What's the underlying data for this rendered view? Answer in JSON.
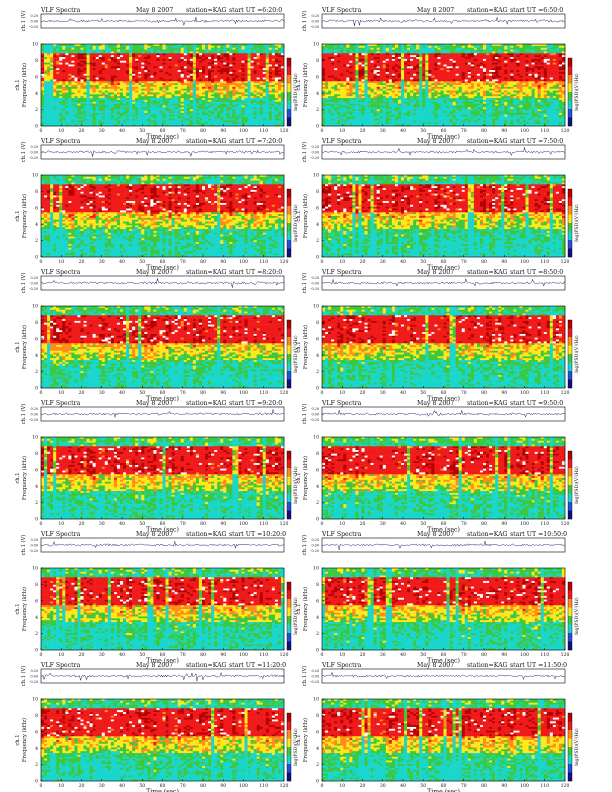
{
  "figure": {
    "panel_title": "VLF Spectra",
    "date": "May 8 2007",
    "station": "station=KAG",
    "start_prefix": "start  UT =",
    "time_label": "Time (sec)",
    "ch_label": "ch.1 (V)",
    "freq_label": "Frequency (kHz)",
    "ch_axis_text": "ch.1",
    "colorbar_label": "log(PSD)(V²/Hz)",
    "ch_ticks": [
      "0.20",
      "0.00",
      "-0.20"
    ],
    "colors": {
      "dark_red": "#b40000",
      "red": "#f01a1a",
      "orange": "#ff8c1a",
      "yellow": "#ffe81a",
      "green": "#3cc83c",
      "cyan": "#19d6cc",
      "blue": "#2050e0",
      "dark_blue": "#101080",
      "white": "#ffffff"
    }
  },
  "chart_data": [
    {
      "type": "heatmap",
      "start_ut": "6:20:0",
      "title": "VLF Spectra  May 8 2007  station=KAG  start UT =6:20:0",
      "xlabel": "Time (sec)",
      "ylabel": "Frequency (kHz)",
      "x_ticks": [
        0,
        10,
        20,
        30,
        40,
        50,
        60,
        70,
        80,
        90,
        100,
        110,
        120
      ],
      "y_ticks": [
        0,
        2,
        4,
        6,
        8,
        10
      ],
      "xlim": [
        0,
        120
      ],
      "ylim": [
        0,
        10
      ],
      "colorbar": "log(PSD)(V²/Hz)"
    },
    {
      "type": "heatmap",
      "start_ut": "6:50:0",
      "title": "VLF Spectra  May 8 2007  station=KAG  start UT =6:50:0",
      "xlabel": "Time (sec)",
      "ylabel": "Frequency (kHz)",
      "x_ticks": [
        0,
        10,
        20,
        30,
        40,
        50,
        60,
        70,
        80,
        90,
        100,
        110,
        120
      ],
      "y_ticks": [
        0,
        2,
        4,
        6,
        8,
        10
      ],
      "xlim": [
        0,
        120
      ],
      "ylim": [
        0,
        10
      ],
      "colorbar": "log(PSD)(V²/Hz)"
    },
    {
      "type": "heatmap",
      "start_ut": "7:20:0",
      "title": "VLF Spectra  May 8 2007  station=KAG  start UT =7:20:0",
      "xlabel": "Time (sec)",
      "ylabel": "Frequency (kHz)",
      "x_ticks": [
        0,
        10,
        20,
        30,
        40,
        50,
        60,
        70,
        80,
        90,
        100,
        110,
        120
      ],
      "y_ticks": [
        0,
        2,
        4,
        6,
        8,
        10
      ],
      "xlim": [
        0,
        120
      ],
      "ylim": [
        0,
        10
      ],
      "colorbar": "log(PSD)(V²/Hz)"
    },
    {
      "type": "heatmap",
      "start_ut": "7:50:0",
      "title": "VLF Spectra  May 8 2007  station=KAG  start UT =7:50:0",
      "xlabel": "Time (sec)",
      "ylabel": "Frequency (kHz)",
      "x_ticks": [
        0,
        10,
        20,
        30,
        40,
        50,
        60,
        70,
        80,
        90,
        100,
        110,
        120
      ],
      "y_ticks": [
        0,
        2,
        4,
        6,
        8,
        10
      ],
      "xlim": [
        0,
        120
      ],
      "ylim": [
        0,
        10
      ],
      "colorbar": "log(PSD)(V²/Hz)"
    },
    {
      "type": "heatmap",
      "start_ut": "8:20:0",
      "title": "VLF Spectra  May 8 2007  station=KAG  start UT =8:20:0",
      "xlabel": "Time (sec)",
      "ylabel": "Frequency (kHz)",
      "x_ticks": [
        0,
        10,
        20,
        30,
        40,
        50,
        60,
        70,
        80,
        90,
        100,
        110,
        120
      ],
      "y_ticks": [
        0,
        2,
        4,
        6,
        8,
        10
      ],
      "xlim": [
        0,
        120
      ],
      "ylim": [
        0,
        10
      ],
      "colorbar": "log(PSD)(V²/Hz)"
    },
    {
      "type": "heatmap",
      "start_ut": "8:50:0",
      "title": "VLF Spectra  May 8 2007  station=KAG  start UT =8:50:0",
      "xlabel": "Time (sec)",
      "ylabel": "Frequency (kHz)",
      "x_ticks": [
        0,
        10,
        20,
        30,
        40,
        50,
        60,
        70,
        80,
        90,
        100,
        110,
        120
      ],
      "y_ticks": [
        0,
        2,
        4,
        6,
        8,
        10
      ],
      "xlim": [
        0,
        120
      ],
      "ylim": [
        0,
        10
      ],
      "colorbar": "log(PSD)(V²/Hz)"
    },
    {
      "type": "heatmap",
      "start_ut": "9:20:0",
      "title": "VLF Spectra  May 8 2007  station=KAG  start UT =9:20:0",
      "xlabel": "Time (sec)",
      "ylabel": "Frequency (kHz)",
      "x_ticks": [
        0,
        10,
        20,
        30,
        40,
        50,
        60,
        70,
        80,
        90,
        100,
        110,
        120
      ],
      "y_ticks": [
        0,
        2,
        4,
        6,
        8,
        10
      ],
      "xlim": [
        0,
        120
      ],
      "ylim": [
        0,
        10
      ],
      "colorbar": "log(PSD)(V²/Hz)"
    },
    {
      "type": "heatmap",
      "start_ut": "9:50:0",
      "title": "VLF Spectra  May 8 2007  station=KAG  start UT =9:50:0",
      "xlabel": "Time (sec)",
      "ylabel": "Frequency (kHz)",
      "x_ticks": [
        0,
        10,
        20,
        30,
        40,
        50,
        60,
        70,
        80,
        90,
        100,
        110,
        120
      ],
      "y_ticks": [
        0,
        2,
        4,
        6,
        8,
        10
      ],
      "xlim": [
        0,
        120
      ],
      "ylim": [
        0,
        10
      ],
      "colorbar": "log(PSD)(V²/Hz)"
    },
    {
      "type": "heatmap",
      "start_ut": "10:20:0",
      "title": "VLF Spectra  May 8 2007  station=KAG  start UT =10:20:0",
      "xlabel": "Time (sec)",
      "ylabel": "Frequency (kHz)",
      "x_ticks": [
        0,
        10,
        20,
        30,
        40,
        50,
        60,
        70,
        80,
        90,
        100,
        110,
        120
      ],
      "y_ticks": [
        0,
        2,
        4,
        6,
        8,
        10
      ],
      "xlim": [
        0,
        120
      ],
      "ylim": [
        0,
        10
      ],
      "colorbar": "log(PSD)(V²/Hz)"
    },
    {
      "type": "heatmap",
      "start_ut": "10:50:0",
      "title": "VLF Spectra  May 8 2007  station=KAG  start UT =10:50:0",
      "xlabel": "Time (sec)",
      "ylabel": "Frequency (kHz)",
      "x_ticks": [
        0,
        10,
        20,
        30,
        40,
        50,
        60,
        70,
        80,
        90,
        100,
        110,
        120
      ],
      "y_ticks": [
        0,
        2,
        4,
        6,
        8,
        10
      ],
      "xlim": [
        0,
        120
      ],
      "ylim": [
        0,
        10
      ],
      "colorbar": "log(PSD)(V²/Hz)"
    },
    {
      "type": "heatmap",
      "start_ut": "11:20:0",
      "title": "VLF Spectra  May 8 2007  station=KAG  start UT =11:20:0",
      "xlabel": "Time (sec)",
      "ylabel": "Frequency (kHz)",
      "x_ticks": [
        0,
        10,
        20,
        30,
        40,
        50,
        60,
        70,
        80,
        90,
        100,
        110,
        120
      ],
      "y_ticks": [
        0,
        2,
        4,
        6,
        8,
        10
      ],
      "xlim": [
        0,
        120
      ],
      "ylim": [
        0,
        10
      ],
      "colorbar": "log(PSD)(V²/Hz)"
    },
    {
      "type": "heatmap",
      "start_ut": "11:50:0",
      "title": "VLF Spectra  May 8 2007  station=KAG  start UT =11:50:0",
      "xlabel": "Time (sec)",
      "ylabel": "Frequency (kHz)",
      "x_ticks": [
        0,
        10,
        20,
        30,
        40,
        50,
        60,
        70,
        80,
        90,
        100,
        110,
        120
      ],
      "y_ticks": [
        0,
        2,
        4,
        6,
        8,
        10
      ],
      "xlim": [
        0,
        120
      ],
      "ylim": [
        0,
        10
      ],
      "colorbar": "log(PSD)(V²/Hz)"
    }
  ]
}
